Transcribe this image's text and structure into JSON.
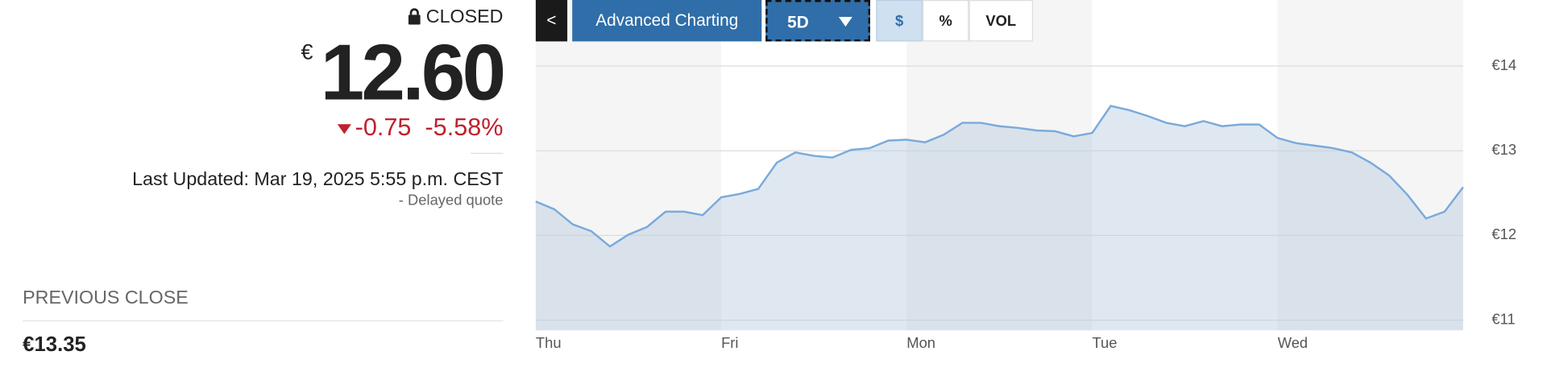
{
  "quote": {
    "status": "CLOSED",
    "currency": "€",
    "price": "12.60",
    "change": "-0.75",
    "change_pct": "-5.58%",
    "last_updated": "Last Updated: Mar 19, 2025 5:55 p.m. CEST",
    "delayed": "-  Delayed quote",
    "previous_close_label": "PREVIOUS CLOSE",
    "previous_close": "€13.35"
  },
  "toolbar": {
    "back": "<",
    "advanced": "Advanced Charting",
    "range": "5D",
    "dollar": "$",
    "percent": "%",
    "vol": "VOL"
  },
  "chart_data": {
    "type": "area",
    "color": "#7aaadb",
    "x": [
      0,
      1,
      2,
      3,
      4,
      5,
      6,
      7,
      8,
      9,
      10,
      11,
      12,
      13,
      14,
      15,
      16,
      17,
      18,
      19,
      20,
      21,
      22,
      23,
      24,
      25,
      26,
      27,
      28,
      29,
      30,
      31,
      32,
      33,
      34,
      35,
      36,
      37,
      38,
      39,
      40,
      41,
      42,
      43,
      44,
      45,
      46,
      47,
      48,
      49,
      50
    ],
    "values": [
      12.4,
      12.31,
      12.13,
      12.05,
      11.87,
      12.01,
      12.1,
      12.28,
      12.28,
      12.24,
      12.45,
      12.49,
      12.55,
      12.86,
      12.98,
      12.94,
      12.92,
      13.01,
      13.03,
      13.12,
      13.13,
      13.1,
      13.19,
      13.33,
      13.33,
      13.29,
      13.27,
      13.24,
      13.23,
      13.17,
      13.21,
      13.53,
      13.48,
      13.41,
      13.33,
      13.29,
      13.35,
      13.29,
      13.31,
      13.31,
      13.15,
      13.09,
      13.06,
      13.03,
      12.98,
      12.86,
      12.71,
      12.48,
      12.2,
      12.28,
      12.57
    ],
    "xlim": [
      0,
      50
    ],
    "xticks": [
      {
        "value": 0,
        "label": "Thu"
      },
      {
        "value": 10,
        "label": "Fri"
      },
      {
        "value": 20,
        "label": "Mon"
      },
      {
        "value": 30,
        "label": "Tue"
      },
      {
        "value": 40,
        "label": "Wed"
      }
    ],
    "ylim": [
      10.88,
      14.78
    ],
    "yticks": [
      {
        "value": 11,
        "label": "€11"
      },
      {
        "value": 12,
        "label": "€12"
      },
      {
        "value": 13,
        "label": "€13"
      },
      {
        "value": 14,
        "label": "€14"
      }
    ],
    "grid": true
  }
}
